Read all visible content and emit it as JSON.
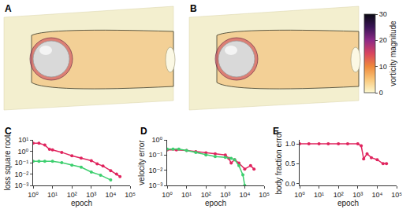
{
  "diagram_panels": [
    {
      "label": "A"
    },
    {
      "label": "B"
    }
  ],
  "chart_data": [
    {
      "type": "colorbar",
      "title": "vorticity magnitude",
      "zlim": [
        0,
        30
      ],
      "zticks": [
        0,
        10,
        20,
        30
      ],
      "colors": [
        "#fcf8cf",
        "#f9c77a",
        "#ef8a3c",
        "#d9455f",
        "#8e2a86",
        "#3b1557",
        "#0b0a14"
      ]
    },
    {
      "type": "line",
      "panel": "C",
      "xlabel": "epoch",
      "ylabel": "loss square root",
      "log": true,
      "grid": false,
      "xlim": [
        1,
        100000
      ],
      "xticks": [
        {
          "value": 1,
          "label": "10⁰"
        },
        {
          "value": 10,
          "label": "10¹"
        },
        {
          "value": 100,
          "label": "10²"
        },
        {
          "value": 1000,
          "label": "10³"
        },
        {
          "value": 10000,
          "label": "10⁴"
        },
        {
          "value": 100000,
          "label": "10⁵"
        }
      ],
      "ylim": [
        0.001,
        10
      ],
      "yticks": [
        {
          "value": 0.001,
          "label": "10⁻³"
        },
        {
          "value": 0.01,
          "label": "10⁻²"
        },
        {
          "value": 0.1,
          "label": "10⁻¹"
        },
        {
          "value": 1,
          "label": "10⁰"
        },
        {
          "value": 10,
          "label": "10¹"
        }
      ],
      "series": [
        {
          "color": "#e0245e",
          "marker": "circle",
          "line_style": "solid",
          "x": [
            1,
            2,
            4,
            7,
            10,
            30,
            100,
            300,
            1000,
            2000,
            4000,
            10000,
            20000,
            30000
          ],
          "values": [
            5,
            5,
            3.5,
            1.5,
            1.3,
            0.8,
            0.4,
            0.25,
            0.15,
            0.08,
            0.05,
            0.02,
            0.01,
            0.006
          ]
        },
        {
          "color": "#3ccf6e",
          "marker": "circle",
          "line_style": "solid",
          "x": [
            1,
            2,
            4,
            10,
            30,
            100,
            300,
            1000,
            3000,
            10000
          ],
          "values": [
            0.13,
            0.13,
            0.13,
            0.13,
            0.1,
            0.06,
            0.04,
            0.015,
            0.008,
            0.003
          ]
        }
      ]
    },
    {
      "type": "line",
      "panel": "D",
      "xlabel": "epoch",
      "ylabel": "velocity error",
      "log": true,
      "grid": false,
      "xlim": [
        1,
        100000
      ],
      "xticks": [
        {
          "value": 1,
          "label": "10⁰"
        },
        {
          "value": 10,
          "label": "10¹"
        },
        {
          "value": 100,
          "label": "10²"
        },
        {
          "value": 1000,
          "label": "10³"
        },
        {
          "value": 10000,
          "label": "10⁴"
        },
        {
          "value": 100000,
          "label": "10⁵"
        }
      ],
      "ylim": [
        0.001,
        1
      ],
      "yticks": [
        {
          "value": 0.001,
          "label": "10⁻³"
        },
        {
          "value": 0.01,
          "label": "10⁻²"
        },
        {
          "value": 0.1,
          "label": "10⁻¹"
        },
        {
          "value": 1,
          "label": "10⁰"
        }
      ],
      "series": [
        {
          "color": "#e0245e",
          "marker": "circle",
          "line_style": "solid",
          "x": [
            1,
            3,
            10,
            30,
            100,
            300,
            1000,
            1500,
            2000,
            3000,
            5000,
            10000,
            20000,
            30000
          ],
          "values": [
            0.22,
            0.22,
            0.2,
            0.17,
            0.14,
            0.12,
            0.1,
            0.06,
            0.03,
            0.05,
            0.03,
            0.012,
            0.02,
            0.012
          ]
        },
        {
          "color": "#3ccf6e",
          "marker": "circle",
          "line_style": "solid",
          "x": [
            1,
            2,
            4,
            10,
            30,
            100,
            300,
            1000,
            2000,
            3000,
            5000,
            8000,
            10000
          ],
          "values": [
            0.25,
            0.25,
            0.25,
            0.2,
            0.15,
            0.1,
            0.08,
            0.07,
            0.06,
            0.05,
            0.02,
            0.005,
            0.001
          ]
        }
      ]
    },
    {
      "type": "line",
      "panel": "E",
      "xlabel": "epoch",
      "ylabel": "body fraction error",
      "log": "x",
      "grid": false,
      "xlim": [
        1,
        100000
      ],
      "xticks": [
        {
          "value": 1,
          "label": "10⁰"
        },
        {
          "value": 10,
          "label": "10¹"
        },
        {
          "value": 100,
          "label": "10²"
        },
        {
          "value": 1000,
          "label": "10³"
        },
        {
          "value": 10000,
          "label": "10⁴"
        },
        {
          "value": 100000,
          "label": "10⁵"
        }
      ],
      "ylim": [
        -0.05,
        1.1
      ],
      "yticks": [
        {
          "value": 0,
          "label": "0.0"
        },
        {
          "value": 0.5,
          "label": "0.5"
        },
        {
          "value": 1,
          "label": "1.0"
        }
      ],
      "series": [
        {
          "color": "#e0245e",
          "marker": "circle",
          "line_style": "solid",
          "x": [
            1,
            3,
            10,
            30,
            100,
            300,
            1000,
            1500,
            2000,
            3000,
            5000,
            10000,
            20000,
            30000
          ],
          "values": [
            1,
            1,
            1,
            1,
            1,
            1,
            1,
            0.95,
            0.62,
            0.75,
            0.65,
            0.6,
            0.5,
            0.5
          ]
        }
      ]
    }
  ]
}
